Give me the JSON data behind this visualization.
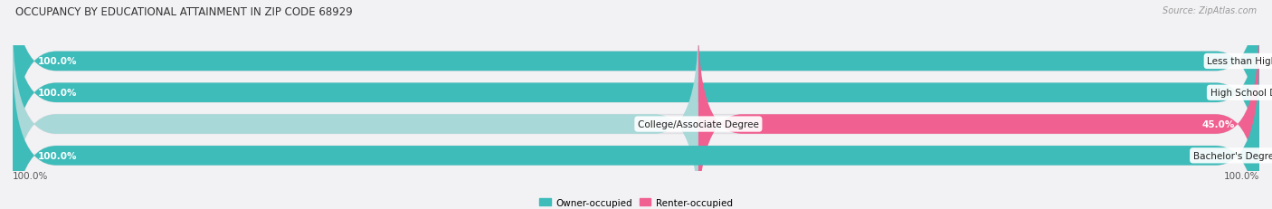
{
  "title": "OCCUPANCY BY EDUCATIONAL ATTAINMENT IN ZIP CODE 68929",
  "source": "Source: ZipAtlas.com",
  "categories": [
    "Less than High School",
    "High School Diploma",
    "College/Associate Degree",
    "Bachelor's Degree or higher"
  ],
  "owner_pct": [
    100.0,
    100.0,
    55.0,
    100.0
  ],
  "renter_pct": [
    0.0,
    0.0,
    45.0,
    0.0
  ],
  "owner_color": "#3dbcba",
  "owner_color_light": "#a8d8d8",
  "renter_color": "#f06090",
  "renter_color_light": "#f8b8cc",
  "bar_bg_color": "#e8e8ec",
  "background_color": "#f2f2f5",
  "figsize": [
    14.06,
    2.32
  ],
  "dpi": 100,
  "legend_labels": [
    "Owner-occupied",
    "Renter-occupied"
  ],
  "x_tick_left": "100.0%",
  "x_tick_right": "100.0%"
}
